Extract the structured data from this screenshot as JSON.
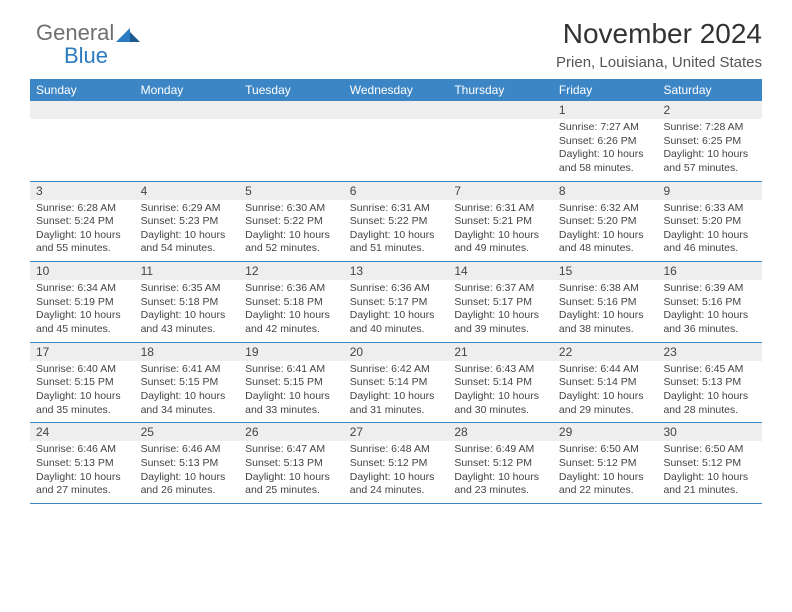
{
  "logo": {
    "text_general": "General",
    "text_blue": "Blue"
  },
  "title": "November 2024",
  "subtitle": "Prien, Louisiana, United States",
  "colors": {
    "header_bg": "#3d86c6",
    "row_border": "#3d86c6",
    "daynum_bg": "#eeeeee",
    "text": "#444444",
    "logo_gray": "#6f6f6f",
    "logo_blue": "#2a7bbf"
  },
  "day_headers": [
    "Sunday",
    "Monday",
    "Tuesday",
    "Wednesday",
    "Thursday",
    "Friday",
    "Saturday"
  ],
  "weeks": [
    [
      {
        "n": "",
        "sr": "",
        "ss": "",
        "dl": ""
      },
      {
        "n": "",
        "sr": "",
        "ss": "",
        "dl": ""
      },
      {
        "n": "",
        "sr": "",
        "ss": "",
        "dl": ""
      },
      {
        "n": "",
        "sr": "",
        "ss": "",
        "dl": ""
      },
      {
        "n": "",
        "sr": "",
        "ss": "",
        "dl": ""
      },
      {
        "n": "1",
        "sr": "Sunrise: 7:27 AM",
        "ss": "Sunset: 6:26 PM",
        "dl": "Daylight: 10 hours and 58 minutes."
      },
      {
        "n": "2",
        "sr": "Sunrise: 7:28 AM",
        "ss": "Sunset: 6:25 PM",
        "dl": "Daylight: 10 hours and 57 minutes."
      }
    ],
    [
      {
        "n": "3",
        "sr": "Sunrise: 6:28 AM",
        "ss": "Sunset: 5:24 PM",
        "dl": "Daylight: 10 hours and 55 minutes."
      },
      {
        "n": "4",
        "sr": "Sunrise: 6:29 AM",
        "ss": "Sunset: 5:23 PM",
        "dl": "Daylight: 10 hours and 54 minutes."
      },
      {
        "n": "5",
        "sr": "Sunrise: 6:30 AM",
        "ss": "Sunset: 5:22 PM",
        "dl": "Daylight: 10 hours and 52 minutes."
      },
      {
        "n": "6",
        "sr": "Sunrise: 6:31 AM",
        "ss": "Sunset: 5:22 PM",
        "dl": "Daylight: 10 hours and 51 minutes."
      },
      {
        "n": "7",
        "sr": "Sunrise: 6:31 AM",
        "ss": "Sunset: 5:21 PM",
        "dl": "Daylight: 10 hours and 49 minutes."
      },
      {
        "n": "8",
        "sr": "Sunrise: 6:32 AM",
        "ss": "Sunset: 5:20 PM",
        "dl": "Daylight: 10 hours and 48 minutes."
      },
      {
        "n": "9",
        "sr": "Sunrise: 6:33 AM",
        "ss": "Sunset: 5:20 PM",
        "dl": "Daylight: 10 hours and 46 minutes."
      }
    ],
    [
      {
        "n": "10",
        "sr": "Sunrise: 6:34 AM",
        "ss": "Sunset: 5:19 PM",
        "dl": "Daylight: 10 hours and 45 minutes."
      },
      {
        "n": "11",
        "sr": "Sunrise: 6:35 AM",
        "ss": "Sunset: 5:18 PM",
        "dl": "Daylight: 10 hours and 43 minutes."
      },
      {
        "n": "12",
        "sr": "Sunrise: 6:36 AM",
        "ss": "Sunset: 5:18 PM",
        "dl": "Daylight: 10 hours and 42 minutes."
      },
      {
        "n": "13",
        "sr": "Sunrise: 6:36 AM",
        "ss": "Sunset: 5:17 PM",
        "dl": "Daylight: 10 hours and 40 minutes."
      },
      {
        "n": "14",
        "sr": "Sunrise: 6:37 AM",
        "ss": "Sunset: 5:17 PM",
        "dl": "Daylight: 10 hours and 39 minutes."
      },
      {
        "n": "15",
        "sr": "Sunrise: 6:38 AM",
        "ss": "Sunset: 5:16 PM",
        "dl": "Daylight: 10 hours and 38 minutes."
      },
      {
        "n": "16",
        "sr": "Sunrise: 6:39 AM",
        "ss": "Sunset: 5:16 PM",
        "dl": "Daylight: 10 hours and 36 minutes."
      }
    ],
    [
      {
        "n": "17",
        "sr": "Sunrise: 6:40 AM",
        "ss": "Sunset: 5:15 PM",
        "dl": "Daylight: 10 hours and 35 minutes."
      },
      {
        "n": "18",
        "sr": "Sunrise: 6:41 AM",
        "ss": "Sunset: 5:15 PM",
        "dl": "Daylight: 10 hours and 34 minutes."
      },
      {
        "n": "19",
        "sr": "Sunrise: 6:41 AM",
        "ss": "Sunset: 5:15 PM",
        "dl": "Daylight: 10 hours and 33 minutes."
      },
      {
        "n": "20",
        "sr": "Sunrise: 6:42 AM",
        "ss": "Sunset: 5:14 PM",
        "dl": "Daylight: 10 hours and 31 minutes."
      },
      {
        "n": "21",
        "sr": "Sunrise: 6:43 AM",
        "ss": "Sunset: 5:14 PM",
        "dl": "Daylight: 10 hours and 30 minutes."
      },
      {
        "n": "22",
        "sr": "Sunrise: 6:44 AM",
        "ss": "Sunset: 5:14 PM",
        "dl": "Daylight: 10 hours and 29 minutes."
      },
      {
        "n": "23",
        "sr": "Sunrise: 6:45 AM",
        "ss": "Sunset: 5:13 PM",
        "dl": "Daylight: 10 hours and 28 minutes."
      }
    ],
    [
      {
        "n": "24",
        "sr": "Sunrise: 6:46 AM",
        "ss": "Sunset: 5:13 PM",
        "dl": "Daylight: 10 hours and 27 minutes."
      },
      {
        "n": "25",
        "sr": "Sunrise: 6:46 AM",
        "ss": "Sunset: 5:13 PM",
        "dl": "Daylight: 10 hours and 26 minutes."
      },
      {
        "n": "26",
        "sr": "Sunrise: 6:47 AM",
        "ss": "Sunset: 5:13 PM",
        "dl": "Daylight: 10 hours and 25 minutes."
      },
      {
        "n": "27",
        "sr": "Sunrise: 6:48 AM",
        "ss": "Sunset: 5:12 PM",
        "dl": "Daylight: 10 hours and 24 minutes."
      },
      {
        "n": "28",
        "sr": "Sunrise: 6:49 AM",
        "ss": "Sunset: 5:12 PM",
        "dl": "Daylight: 10 hours and 23 minutes."
      },
      {
        "n": "29",
        "sr": "Sunrise: 6:50 AM",
        "ss": "Sunset: 5:12 PM",
        "dl": "Daylight: 10 hours and 22 minutes."
      },
      {
        "n": "30",
        "sr": "Sunrise: 6:50 AM",
        "ss": "Sunset: 5:12 PM",
        "dl": "Daylight: 10 hours and 21 minutes."
      }
    ]
  ]
}
